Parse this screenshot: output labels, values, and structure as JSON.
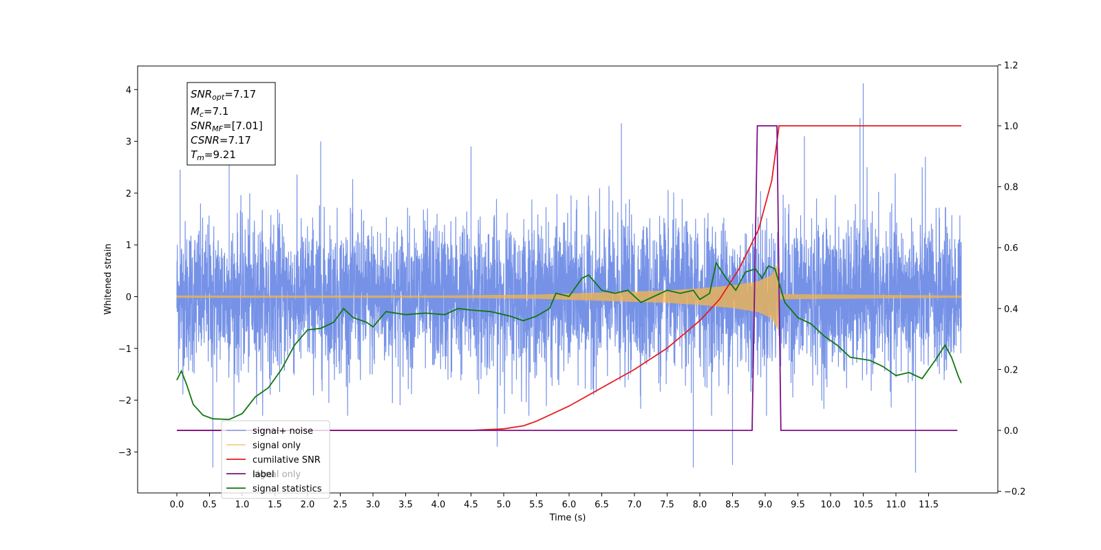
{
  "chart_data": {
    "type": "line",
    "xlabel": "Time (s)",
    "ylabel": "Whitened strain",
    "xlim": [
      -0.58,
      12.58
    ],
    "ylim": [
      -3.75,
      4.5
    ],
    "y2lim": [
      -0.2,
      1.2
    ],
    "x_ticks": [
      "0.0",
      "0.5",
      "1.0",
      "1.5",
      "2.0",
      "2.5",
      "3.0",
      "3.5",
      "4.0",
      "4.5",
      "5.0",
      "5.5",
      "6.0",
      "6.5",
      "7.0",
      "7.5",
      "8.0",
      "8.5",
      "9.0",
      "9.5",
      "10.0",
      "10.5",
      "11.0",
      "11.5"
    ],
    "y_ticks": [
      "4",
      "3",
      "2",
      "1",
      "0",
      "−1",
      "−2",
      "−3"
    ],
    "y2_ticks": [
      "1.2",
      "1.0",
      "0.8",
      "0.6",
      "0.4",
      "0.2",
      "0.0",
      "−0.2"
    ],
    "legend_placement": "lower-left",
    "grid": false,
    "info_box": {
      "line1": {
        "sym": "SNR",
        "sub": "opt",
        "val": "=7.17"
      },
      "line2": {
        "sym": "M",
        "sub": "c",
        "val": "=7.1"
      },
      "line3": {
        "sym": "SNR",
        "sub": "MF",
        "val": "=[7.01]"
      },
      "line4": {
        "sym": "CSNR",
        "sub": "",
        "val": "=7.17"
      },
      "line5": {
        "sym": "T",
        "sub": "m",
        "val": "=9.21"
      }
    },
    "series": [
      {
        "name": "signal+ noise",
        "color": "#6f8ce6",
        "axis": "left",
        "description_values": "whitened noisy strain, 0.0 to 12.0 s, roughly within -2.3 to 2.5 with peaks to 4.1 near 10.5 s",
        "x_range": [
          0.0,
          12.0
        ],
        "amplitude_band": [
          -1.3,
          1.35
        ],
        "peaks": [
          [
            0.05,
            2.45
          ],
          [
            0.55,
            -3.3
          ],
          [
            0.8,
            2.6
          ],
          [
            2.2,
            3.0
          ],
          [
            4.5,
            2.9
          ],
          [
            4.9,
            -2.9
          ],
          [
            6.8,
            3.35
          ],
          [
            7.9,
            -3.3
          ],
          [
            8.5,
            -3.25
          ],
          [
            9.6,
            3.1
          ],
          [
            10.45,
            3.45
          ],
          [
            10.5,
            4.12
          ],
          [
            11.3,
            -3.4
          ],
          [
            11.45,
            2.7
          ]
        ]
      },
      {
        "name": "signal only",
        "color": "#f5b54a",
        "axis": "left",
        "envelope": [
          [
            0.0,
            0.02
          ],
          [
            4.0,
            0.02
          ],
          [
            5.5,
            0.04
          ],
          [
            6.5,
            0.08
          ],
          [
            7.5,
            0.12
          ],
          [
            8.0,
            0.16
          ],
          [
            8.5,
            0.22
          ],
          [
            8.9,
            0.3
          ],
          [
            9.1,
            0.42
          ],
          [
            9.2,
            0.65
          ],
          [
            9.21,
            0.05
          ],
          [
            12.0,
            0.02
          ]
        ]
      },
      {
        "name": "cumilative SNR",
        "color": "#e8191c",
        "axis": "right",
        "points": [
          [
            0.0,
            0.0
          ],
          [
            4.5,
            0.0
          ],
          [
            5.0,
            0.005
          ],
          [
            5.3,
            0.015
          ],
          [
            5.5,
            0.03
          ],
          [
            6.0,
            0.08
          ],
          [
            6.5,
            0.14
          ],
          [
            7.0,
            0.2
          ],
          [
            7.5,
            0.27
          ],
          [
            8.0,
            0.36
          ],
          [
            8.3,
            0.43
          ],
          [
            8.6,
            0.53
          ],
          [
            8.9,
            0.66
          ],
          [
            9.1,
            0.82
          ],
          [
            9.2,
            0.98
          ],
          [
            9.21,
            1.0
          ],
          [
            12.0,
            1.0
          ]
        ]
      },
      {
        "name": "label",
        "color": "#7b0f83",
        "axis": "right",
        "points": [
          [
            0.0,
            0.0
          ],
          [
            8.8,
            0.0
          ],
          [
            8.88,
            1.0
          ],
          [
            9.18,
            1.0
          ],
          [
            9.24,
            0.0
          ],
          [
            11.94,
            0.0
          ]
        ]
      },
      {
        "name": "signal only",
        "color": "#7b0f83",
        "axis": "right",
        "legend_only": true
      },
      {
        "name": "signal statistics",
        "color": "#10760f",
        "axis": "right",
        "points": [
          [
            0.0,
            0.165
          ],
          [
            0.07,
            0.195
          ],
          [
            0.15,
            0.15
          ],
          [
            0.25,
            0.085
          ],
          [
            0.4,
            0.05
          ],
          [
            0.55,
            0.038
          ],
          [
            0.8,
            0.036
          ],
          [
            1.0,
            0.055
          ],
          [
            1.2,
            0.11
          ],
          [
            1.4,
            0.14
          ],
          [
            1.6,
            0.2
          ],
          [
            1.8,
            0.28
          ],
          [
            2.0,
            0.33
          ],
          [
            2.2,
            0.335
          ],
          [
            2.4,
            0.355
          ],
          [
            2.55,
            0.4
          ],
          [
            2.7,
            0.37
          ],
          [
            2.9,
            0.355
          ],
          [
            3.0,
            0.34
          ],
          [
            3.2,
            0.39
          ],
          [
            3.5,
            0.38
          ],
          [
            3.8,
            0.385
          ],
          [
            4.1,
            0.38
          ],
          [
            4.3,
            0.4
          ],
          [
            4.5,
            0.395
          ],
          [
            4.8,
            0.39
          ],
          [
            5.1,
            0.375
          ],
          [
            5.3,
            0.36
          ],
          [
            5.5,
            0.375
          ],
          [
            5.7,
            0.4
          ],
          [
            5.8,
            0.45
          ],
          [
            6.0,
            0.44
          ],
          [
            6.2,
            0.5
          ],
          [
            6.3,
            0.51
          ],
          [
            6.5,
            0.46
          ],
          [
            6.7,
            0.45
          ],
          [
            6.9,
            0.46
          ],
          [
            7.1,
            0.42
          ],
          [
            7.3,
            0.44
          ],
          [
            7.5,
            0.46
          ],
          [
            7.7,
            0.45
          ],
          [
            7.9,
            0.46
          ],
          [
            8.0,
            0.43
          ],
          [
            8.15,
            0.45
          ],
          [
            8.25,
            0.55
          ],
          [
            8.4,
            0.5
          ],
          [
            8.55,
            0.46
          ],
          [
            8.7,
            0.52
          ],
          [
            8.85,
            0.53
          ],
          [
            8.95,
            0.5
          ],
          [
            9.05,
            0.54
          ],
          [
            9.15,
            0.53
          ],
          [
            9.3,
            0.42
          ],
          [
            9.5,
            0.37
          ],
          [
            9.7,
            0.35
          ],
          [
            9.9,
            0.31
          ],
          [
            10.1,
            0.28
          ],
          [
            10.3,
            0.24
          ],
          [
            10.6,
            0.23
          ],
          [
            10.8,
            0.21
          ],
          [
            11.0,
            0.18
          ],
          [
            11.2,
            0.19
          ],
          [
            11.4,
            0.17
          ],
          [
            11.6,
            0.23
          ],
          [
            11.75,
            0.28
          ],
          [
            11.85,
            0.24
          ],
          [
            11.95,
            0.18
          ],
          [
            12.0,
            0.155
          ]
        ]
      }
    ]
  }
}
